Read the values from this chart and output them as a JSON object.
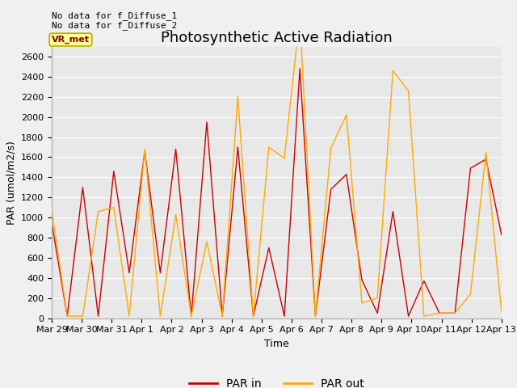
{
  "title": "Photosynthetic Active Radiation",
  "ylabel": "PAR (umol/m2/s)",
  "xlabel": "Time",
  "annotation_line1": "No data for f_Diffuse_1",
  "annotation_line2": "No data for f_Diffuse_2",
  "legend_label": "VR_met",
  "ylim": [
    0,
    2700
  ],
  "yticks": [
    0,
    200,
    400,
    600,
    800,
    1000,
    1200,
    1400,
    1600,
    1800,
    2000,
    2200,
    2400,
    2600
  ],
  "xtick_labels": [
    "Mar 29",
    "Mar 30",
    "Mar 31",
    "Apr 1",
    "Apr 2",
    "Apr 3",
    "Apr 4",
    "Apr 5",
    "Apr 6",
    "Apr 7",
    "Apr 8",
    "Apr 9",
    "Apr 10",
    "Apr 11",
    "Apr 12",
    "Apr 13"
  ],
  "par_in": [
    950,
    20,
    1300,
    20,
    1460,
    450,
    1660,
    450,
    1680,
    20,
    1950,
    20,
    1700,
    20,
    700,
    20,
    2480,
    20,
    1280,
    1430,
    380,
    50,
    1060,
    20,
    370,
    50,
    50,
    1490,
    1580,
    830
  ],
  "par_out": [
    1080,
    20,
    20,
    1060,
    1100,
    20,
    1680,
    20,
    1030,
    20,
    760,
    20,
    2200,
    20,
    1700,
    1590,
    3000,
    20,
    1690,
    2020,
    150,
    200,
    2460,
    2260,
    20,
    50,
    50,
    240,
    1650,
    70
  ],
  "color_par_in": "#cc0000",
  "color_par_out": "#ffaa00",
  "background_color": "#f0f0f0",
  "plot_bg_color": "#e8e8e8",
  "grid_color": "#ffffff",
  "title_fontsize": 13,
  "label_fontsize": 9,
  "tick_fontsize": 8,
  "legend_box_facecolor": "#ffff99",
  "legend_box_edgecolor": "#bbaa00"
}
